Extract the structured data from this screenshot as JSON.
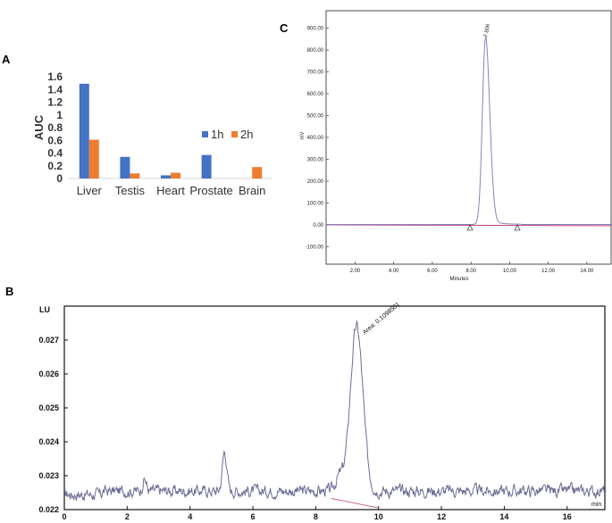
{
  "panels": {
    "a": "A",
    "b": "B",
    "c": "C"
  },
  "colors": {
    "series_1h": "#4472C4",
    "series_2h": "#ED7D31",
    "trace_c": "#8585b8",
    "baseline_c": "#c0407a",
    "trace_b": "#6d6d96",
    "baseline_b": "#d06a8a"
  },
  "chart_data": [
    {
      "id": "A",
      "type": "bar",
      "ylabel": "AUC",
      "xlabel": "",
      "categories": [
        "Liver",
        "Testis",
        "Heart",
        "Prostate",
        "Brain"
      ],
      "series": [
        {
          "name": "1h",
          "values": [
            1.49,
            0.34,
            0.05,
            0.37,
            0.0
          ]
        },
        {
          "name": "2h",
          "values": [
            0.61,
            0.08,
            0.09,
            0.0,
            0.18
          ]
        }
      ],
      "ylim": [
        0,
        1.6
      ],
      "yticks": [
        "0",
        "0.2",
        "0.4",
        "0.6",
        "0.8",
        "1",
        "1.2",
        "1.4",
        "1.6"
      ],
      "grid": false,
      "legend": "right"
    },
    {
      "id": "C",
      "type": "line",
      "ylabel": "mV",
      "xlabel": "Minutes",
      "xlim": [
        0.5,
        15.3
      ],
      "ylim": [
        -180,
        980
      ],
      "xticks": [
        "2.00",
        "4.00",
        "6.00",
        "8.00",
        "10.00",
        "12.00",
        "14.00"
      ],
      "yticks": [
        "-100.00",
        "0.00",
        "100.00",
        "200.00",
        "300.00",
        "400.00",
        "500.00",
        "600.00",
        "700.00",
        "800.00",
        "900.00"
      ],
      "peak_label": "7.806",
      "peak": {
        "x": 8.75,
        "y": 850
      },
      "baseline_markers": [
        {
          "x": 7.95,
          "y": 0
        },
        {
          "x": 10.4,
          "y": 0
        }
      ],
      "grid": false
    },
    {
      "id": "B",
      "type": "line",
      "ylabel": "LU",
      "xlabel": "min",
      "xlim": [
        0,
        17.2
      ],
      "ylim": [
        0.022,
        0.028
      ],
      "xticks": [
        "0",
        "2",
        "4",
        "6",
        "8",
        "10",
        "12",
        "14",
        "16"
      ],
      "yticks": [
        "0.022",
        "0.023",
        "0.024",
        "0.025",
        "0.026",
        "0.027"
      ],
      "annotation": "Area: 0.1098501",
      "peak": {
        "x": 9.3,
        "y": 0.02745
      },
      "noise_peaks": [
        {
          "x": 2.55,
          "y": 0.0229
        },
        {
          "x": 5.1,
          "y": 0.02372
        }
      ],
      "baseline_segment": [
        {
          "x": 8.5,
          "y": 0.02233
        },
        {
          "x": 10.0,
          "y": 0.02205
        }
      ],
      "grid": false
    }
  ]
}
